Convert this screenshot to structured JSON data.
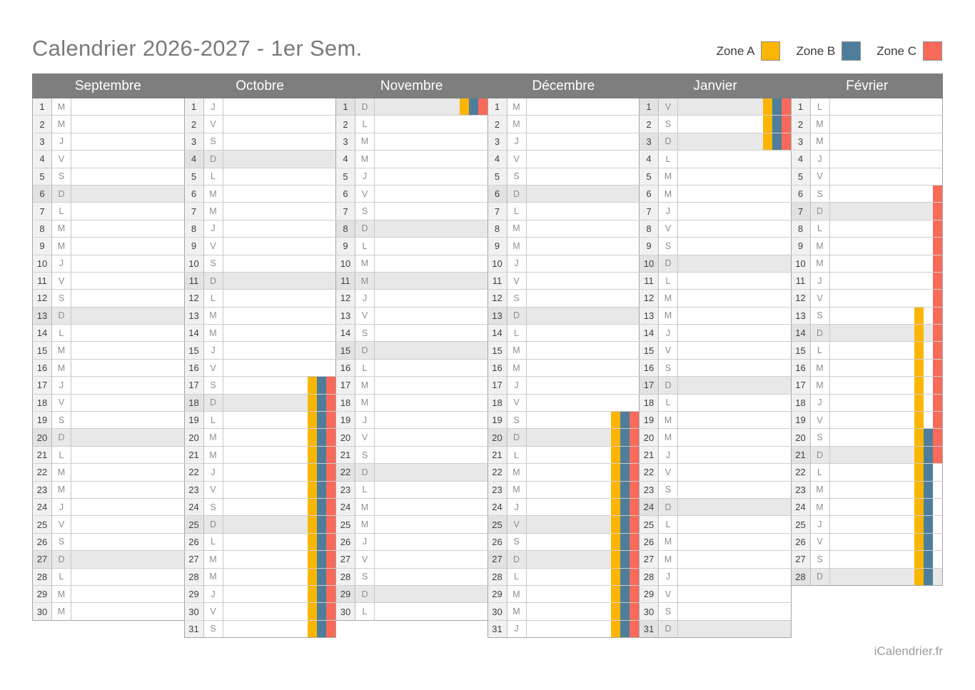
{
  "title": "Calendrier 2026-2027 - 1er Sem.",
  "footer": "iCalendrier.fr",
  "legend": [
    {
      "label": "Zone A",
      "color": "#FBB503"
    },
    {
      "label": "Zone B",
      "color": "#4E7E9B"
    },
    {
      "label": "Zone C",
      "color": "#F96A5A"
    }
  ],
  "colors": {
    "header_bg": "#7E7E7E",
    "shaded_row": "#E8E8E8",
    "zone_a": "#FBB503",
    "zone_b": "#4E7E9B",
    "zone_c": "#F96A5A"
  },
  "months": [
    {
      "name": "Septembre",
      "days": [
        [
          1,
          "M",
          0,
          ""
        ],
        [
          2,
          "M",
          0,
          ""
        ],
        [
          3,
          "J",
          0,
          ""
        ],
        [
          4,
          "V",
          0,
          ""
        ],
        [
          5,
          "S",
          0,
          ""
        ],
        [
          6,
          "D",
          1,
          ""
        ],
        [
          7,
          "L",
          0,
          ""
        ],
        [
          8,
          "M",
          0,
          ""
        ],
        [
          9,
          "M",
          0,
          ""
        ],
        [
          10,
          "J",
          0,
          ""
        ],
        [
          11,
          "V",
          0,
          ""
        ],
        [
          12,
          "S",
          0,
          ""
        ],
        [
          13,
          "D",
          1,
          ""
        ],
        [
          14,
          "L",
          0,
          ""
        ],
        [
          15,
          "M",
          0,
          ""
        ],
        [
          16,
          "M",
          0,
          ""
        ],
        [
          17,
          "J",
          0,
          ""
        ],
        [
          18,
          "V",
          0,
          ""
        ],
        [
          19,
          "S",
          0,
          ""
        ],
        [
          20,
          "D",
          1,
          ""
        ],
        [
          21,
          "L",
          0,
          ""
        ],
        [
          22,
          "M",
          0,
          ""
        ],
        [
          23,
          "M",
          0,
          ""
        ],
        [
          24,
          "J",
          0,
          ""
        ],
        [
          25,
          "V",
          0,
          ""
        ],
        [
          26,
          "S",
          0,
          ""
        ],
        [
          27,
          "D",
          1,
          ""
        ],
        [
          28,
          "L",
          0,
          ""
        ],
        [
          29,
          "M",
          0,
          ""
        ],
        [
          30,
          "M",
          0,
          ""
        ]
      ]
    },
    {
      "name": "Octobre",
      "days": [
        [
          1,
          "J",
          0,
          ""
        ],
        [
          2,
          "V",
          0,
          ""
        ],
        [
          3,
          "S",
          0,
          ""
        ],
        [
          4,
          "D",
          1,
          ""
        ],
        [
          5,
          "L",
          0,
          ""
        ],
        [
          6,
          "M",
          0,
          ""
        ],
        [
          7,
          "M",
          0,
          ""
        ],
        [
          8,
          "J",
          0,
          ""
        ],
        [
          9,
          "V",
          0,
          ""
        ],
        [
          10,
          "S",
          0,
          ""
        ],
        [
          11,
          "D",
          1,
          ""
        ],
        [
          12,
          "L",
          0,
          ""
        ],
        [
          13,
          "M",
          0,
          ""
        ],
        [
          14,
          "M",
          0,
          ""
        ],
        [
          15,
          "J",
          0,
          ""
        ],
        [
          16,
          "V",
          0,
          ""
        ],
        [
          17,
          "S",
          0,
          "ABC"
        ],
        [
          18,
          "D",
          1,
          "ABC"
        ],
        [
          19,
          "L",
          0,
          "ABC"
        ],
        [
          20,
          "M",
          0,
          "ABC"
        ],
        [
          21,
          "M",
          0,
          "ABC"
        ],
        [
          22,
          "J",
          0,
          "ABC"
        ],
        [
          23,
          "V",
          0,
          "ABC"
        ],
        [
          24,
          "S",
          0,
          "ABC"
        ],
        [
          25,
          "D",
          1,
          "ABC"
        ],
        [
          26,
          "L",
          0,
          "ABC"
        ],
        [
          27,
          "M",
          0,
          "ABC"
        ],
        [
          28,
          "M",
          0,
          "ABC"
        ],
        [
          29,
          "J",
          0,
          "ABC"
        ],
        [
          30,
          "V",
          0,
          "ABC"
        ],
        [
          31,
          "S",
          0,
          "ABC"
        ]
      ]
    },
    {
      "name": "Novembre",
      "days": [
        [
          1,
          "D",
          1,
          "ABC"
        ],
        [
          2,
          "L",
          0,
          ""
        ],
        [
          3,
          "M",
          0,
          ""
        ],
        [
          4,
          "M",
          0,
          ""
        ],
        [
          5,
          "J",
          0,
          ""
        ],
        [
          6,
          "V",
          0,
          ""
        ],
        [
          7,
          "S",
          0,
          ""
        ],
        [
          8,
          "D",
          1,
          ""
        ],
        [
          9,
          "L",
          0,
          ""
        ],
        [
          10,
          "M",
          0,
          ""
        ],
        [
          11,
          "M",
          1,
          ""
        ],
        [
          12,
          "J",
          0,
          ""
        ],
        [
          13,
          "V",
          0,
          ""
        ],
        [
          14,
          "S",
          0,
          ""
        ],
        [
          15,
          "D",
          1,
          ""
        ],
        [
          16,
          "L",
          0,
          ""
        ],
        [
          17,
          "M",
          0,
          ""
        ],
        [
          18,
          "M",
          0,
          ""
        ],
        [
          19,
          "J",
          0,
          ""
        ],
        [
          20,
          "V",
          0,
          ""
        ],
        [
          21,
          "S",
          0,
          ""
        ],
        [
          22,
          "D",
          1,
          ""
        ],
        [
          23,
          "L",
          0,
          ""
        ],
        [
          24,
          "M",
          0,
          ""
        ],
        [
          25,
          "M",
          0,
          ""
        ],
        [
          26,
          "J",
          0,
          ""
        ],
        [
          27,
          "V",
          0,
          ""
        ],
        [
          28,
          "S",
          0,
          ""
        ],
        [
          29,
          "D",
          1,
          ""
        ],
        [
          30,
          "L",
          0,
          ""
        ]
      ]
    },
    {
      "name": "Décembre",
      "days": [
        [
          1,
          "M",
          0,
          ""
        ],
        [
          2,
          "M",
          0,
          ""
        ],
        [
          3,
          "J",
          0,
          ""
        ],
        [
          4,
          "V",
          0,
          ""
        ],
        [
          5,
          "S",
          0,
          ""
        ],
        [
          6,
          "D",
          1,
          ""
        ],
        [
          7,
          "L",
          0,
          ""
        ],
        [
          8,
          "M",
          0,
          ""
        ],
        [
          9,
          "M",
          0,
          ""
        ],
        [
          10,
          "J",
          0,
          ""
        ],
        [
          11,
          "V",
          0,
          ""
        ],
        [
          12,
          "S",
          0,
          ""
        ],
        [
          13,
          "D",
          1,
          ""
        ],
        [
          14,
          "L",
          0,
          ""
        ],
        [
          15,
          "M",
          0,
          ""
        ],
        [
          16,
          "M",
          0,
          ""
        ],
        [
          17,
          "J",
          0,
          ""
        ],
        [
          18,
          "V",
          0,
          ""
        ],
        [
          19,
          "S",
          0,
          "ABC"
        ],
        [
          20,
          "D",
          1,
          "ABC"
        ],
        [
          21,
          "L",
          0,
          "ABC"
        ],
        [
          22,
          "M",
          0,
          "ABC"
        ],
        [
          23,
          "M",
          0,
          "ABC"
        ],
        [
          24,
          "J",
          0,
          "ABC"
        ],
        [
          25,
          "V",
          1,
          "ABC"
        ],
        [
          26,
          "S",
          0,
          "ABC"
        ],
        [
          27,
          "D",
          1,
          "ABC"
        ],
        [
          28,
          "L",
          0,
          "ABC"
        ],
        [
          29,
          "M",
          0,
          "ABC"
        ],
        [
          30,
          "M",
          0,
          "ABC"
        ],
        [
          31,
          "J",
          0,
          "ABC"
        ]
      ]
    },
    {
      "name": "Janvier",
      "days": [
        [
          1,
          "V",
          1,
          "ABC"
        ],
        [
          2,
          "S",
          0,
          "ABC"
        ],
        [
          3,
          "D",
          1,
          "ABC"
        ],
        [
          4,
          "L",
          0,
          ""
        ],
        [
          5,
          "M",
          0,
          ""
        ],
        [
          6,
          "M",
          0,
          ""
        ],
        [
          7,
          "J",
          0,
          ""
        ],
        [
          8,
          "V",
          0,
          ""
        ],
        [
          9,
          "S",
          0,
          ""
        ],
        [
          10,
          "D",
          1,
          ""
        ],
        [
          11,
          "L",
          0,
          ""
        ],
        [
          12,
          "M",
          0,
          ""
        ],
        [
          13,
          "M",
          0,
          ""
        ],
        [
          14,
          "J",
          0,
          ""
        ],
        [
          15,
          "V",
          0,
          ""
        ],
        [
          16,
          "S",
          0,
          ""
        ],
        [
          17,
          "D",
          1,
          ""
        ],
        [
          18,
          "L",
          0,
          ""
        ],
        [
          19,
          "M",
          0,
          ""
        ],
        [
          20,
          "M",
          0,
          ""
        ],
        [
          21,
          "J",
          0,
          ""
        ],
        [
          22,
          "V",
          0,
          ""
        ],
        [
          23,
          "S",
          0,
          ""
        ],
        [
          24,
          "D",
          1,
          ""
        ],
        [
          25,
          "L",
          0,
          ""
        ],
        [
          26,
          "M",
          0,
          ""
        ],
        [
          27,
          "M",
          0,
          ""
        ],
        [
          28,
          "J",
          0,
          ""
        ],
        [
          29,
          "V",
          0,
          ""
        ],
        [
          30,
          "S",
          0,
          ""
        ],
        [
          31,
          "D",
          1,
          ""
        ]
      ]
    },
    {
      "name": "Février",
      "days": [
        [
          1,
          "L",
          0,
          ""
        ],
        [
          2,
          "M",
          0,
          ""
        ],
        [
          3,
          "M",
          0,
          ""
        ],
        [
          4,
          "J",
          0,
          ""
        ],
        [
          5,
          "V",
          0,
          ""
        ],
        [
          6,
          "S",
          0,
          "C"
        ],
        [
          7,
          "D",
          1,
          "C"
        ],
        [
          8,
          "L",
          0,
          "C"
        ],
        [
          9,
          "M",
          0,
          "C"
        ],
        [
          10,
          "M",
          0,
          "C"
        ],
        [
          11,
          "J",
          0,
          "C"
        ],
        [
          12,
          "V",
          0,
          "C"
        ],
        [
          13,
          "S",
          0,
          "AC"
        ],
        [
          14,
          "D",
          1,
          "AC"
        ],
        [
          15,
          "L",
          0,
          "AC"
        ],
        [
          16,
          "M",
          0,
          "AC"
        ],
        [
          17,
          "M",
          0,
          "AC"
        ],
        [
          18,
          "J",
          0,
          "AC"
        ],
        [
          19,
          "V",
          0,
          "AC"
        ],
        [
          20,
          "S",
          0,
          "ABC"
        ],
        [
          21,
          "D",
          1,
          "ABC"
        ],
        [
          22,
          "L",
          0,
          "AB"
        ],
        [
          23,
          "M",
          0,
          "AB"
        ],
        [
          24,
          "M",
          0,
          "AB"
        ],
        [
          25,
          "J",
          0,
          "AB"
        ],
        [
          26,
          "V",
          0,
          "AB"
        ],
        [
          27,
          "S",
          0,
          "AB"
        ],
        [
          28,
          "D",
          1,
          "AB"
        ]
      ]
    }
  ]
}
